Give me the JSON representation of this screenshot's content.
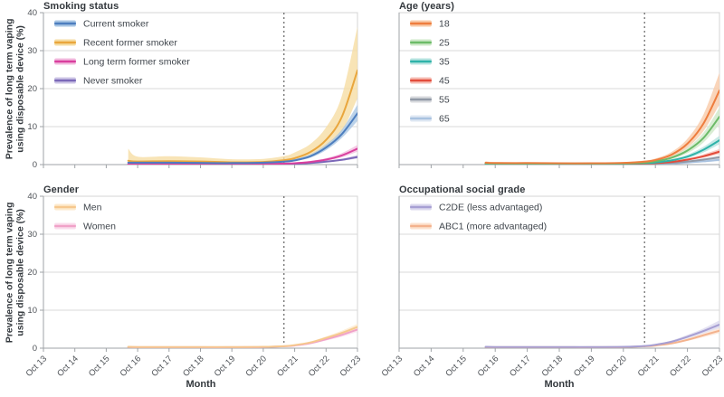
{
  "figure": {
    "ylabel": "Prevalence of long term vaping\nusing disposable device (%)",
    "xlabel": "Month",
    "x_ticks": [
      "Oct 13",
      "Oct 14",
      "Oct 15",
      "Oct 16",
      "Oct 17",
      "Oct 18",
      "Oct 19",
      "Oct 20",
      "Oct 21",
      "Oct 22",
      "Oct 23"
    ],
    "y_ticks": [
      0,
      10,
      20,
      30,
      40
    ],
    "x_range_years": [
      0,
      10
    ],
    "y_range_percent": [
      0,
      40
    ],
    "reference_line_x_years": 7.66,
    "colors": {
      "axis": "#9fa3a7",
      "grid": "#d9d9d9",
      "border": "#d4d4d4",
      "tick_text": "#4d5156",
      "title_text": "#33383d",
      "reference_line": "#444444"
    }
  },
  "chart_data": [
    {
      "type": "line",
      "title": "Smoking status",
      "x_years_since_oct_2013": [
        2.7,
        3,
        4,
        5,
        6,
        7,
        7.7,
        8,
        8.5,
        9,
        9.5,
        10
      ],
      "series": [
        {
          "name": "Current smoker",
          "color": "#4d7ebf",
          "band_color": "#aac7e4",
          "y": [
            0.5,
            0.5,
            0.5,
            0.45,
            0.4,
            0.5,
            0.8,
            1.1,
            2.2,
            4.5,
            8.0,
            13.5
          ],
          "ci_lower": [
            0.3,
            0.3,
            0.35,
            0.3,
            0.28,
            0.35,
            0.6,
            0.9,
            1.8,
            3.8,
            7.0,
            11.5
          ],
          "ci_upper": [
            0.8,
            0.75,
            0.7,
            0.62,
            0.55,
            0.7,
            1.1,
            1.5,
            2.7,
            5.3,
            9.2,
            15.8
          ]
        },
        {
          "name": "Recent former smoker",
          "color": "#e9a63d",
          "band_color": "#f6dda4",
          "y": [
            1.0,
            0.8,
            0.9,
            0.8,
            0.6,
            0.7,
            1.2,
            1.7,
            3.3,
            6.5,
            12.5,
            24.8
          ],
          "ci_lower": [
            0.25,
            0.3,
            0.35,
            0.3,
            0.25,
            0.3,
            0.6,
            0.9,
            2.0,
            4.4,
            8.6,
            17.5
          ],
          "ci_upper": [
            4.2,
            2.1,
            2.2,
            1.9,
            1.4,
            1.5,
            2.3,
            3.2,
            5.4,
            9.8,
            18.0,
            36.3
          ]
        },
        {
          "name": "Long term former smoker",
          "color": "#d93f9e",
          "band_color": "#f2bcdf",
          "y": [
            0.1,
            0.1,
            0.1,
            0.1,
            0.12,
            0.15,
            0.25,
            0.35,
            0.7,
            1.3,
            2.4,
            4.2
          ],
          "ci_lower": [
            0.04,
            0.04,
            0.05,
            0.05,
            0.06,
            0.1,
            0.17,
            0.25,
            0.5,
            1.0,
            1.9,
            3.4
          ],
          "ci_upper": [
            0.25,
            0.2,
            0.2,
            0.2,
            0.22,
            0.28,
            0.4,
            0.55,
            0.95,
            1.7,
            3.0,
            5.2
          ]
        },
        {
          "name": "Never smoker",
          "color": "#7b68b8",
          "band_color": "#cdc6e6",
          "y": [
            0.05,
            0.05,
            0.05,
            0.05,
            0.06,
            0.1,
            0.15,
            0.2,
            0.4,
            0.75,
            1.25,
            2.0
          ],
          "ci_lower": [
            0.02,
            0.02,
            0.02,
            0.02,
            0.03,
            0.06,
            0.1,
            0.14,
            0.3,
            0.6,
            1.0,
            1.6
          ],
          "ci_upper": [
            0.12,
            0.12,
            0.12,
            0.12,
            0.14,
            0.18,
            0.25,
            0.33,
            0.55,
            0.95,
            1.55,
            2.5
          ]
        }
      ]
    },
    {
      "type": "line",
      "title": "Age (years)",
      "x_years_since_oct_2013": [
        2.7,
        3,
        4,
        5,
        6,
        7,
        7.7,
        8,
        8.5,
        9,
        9.5,
        10
      ],
      "series": [
        {
          "name": "18",
          "color": "#ee7d3e",
          "band_color": "#f9cba9",
          "y": [
            0.5,
            0.4,
            0.4,
            0.35,
            0.35,
            0.45,
            0.8,
            1.2,
            2.6,
            5.5,
            10.8,
            19.5
          ],
          "ci_lower": [
            0.3,
            0.25,
            0.27,
            0.24,
            0.24,
            0.32,
            0.6,
            0.95,
            2.1,
            4.5,
            8.8,
            15.8
          ],
          "ci_upper": [
            0.85,
            0.65,
            0.6,
            0.52,
            0.52,
            0.65,
            1.1,
            1.6,
            3.3,
            6.8,
            13.2,
            24.2
          ]
        },
        {
          "name": "25",
          "color": "#6cbb68",
          "band_color": "#cfe9c9",
          "y": [
            0.35,
            0.3,
            0.3,
            0.3,
            0.3,
            0.35,
            0.55,
            0.85,
            1.8,
            3.7,
            7.0,
            12.6
          ],
          "ci_lower": [
            0.25,
            0.22,
            0.22,
            0.22,
            0.22,
            0.26,
            0.42,
            0.66,
            1.45,
            3.0,
            5.8,
            10.6
          ],
          "ci_upper": [
            0.5,
            0.42,
            0.42,
            0.42,
            0.42,
            0.5,
            0.75,
            1.1,
            2.25,
            4.5,
            8.4,
            15.0
          ]
        },
        {
          "name": "35",
          "color": "#2fb3a9",
          "band_color": "#b8e4e0",
          "y": [
            0.25,
            0.22,
            0.22,
            0.2,
            0.2,
            0.25,
            0.4,
            0.55,
            1.1,
            2.1,
            3.9,
            6.4
          ],
          "ci_lower": [
            0.18,
            0.16,
            0.16,
            0.15,
            0.15,
            0.18,
            0.3,
            0.43,
            0.88,
            1.7,
            3.2,
            5.4
          ],
          "ci_upper": [
            0.36,
            0.3,
            0.3,
            0.28,
            0.28,
            0.34,
            0.52,
            0.72,
            1.4,
            2.6,
            4.7,
            7.6
          ]
        },
        {
          "name": "45",
          "color": "#e34c3b",
          "band_color": "#f6beb5",
          "y": [
            0.2,
            0.17,
            0.16,
            0.15,
            0.15,
            0.18,
            0.28,
            0.38,
            0.7,
            1.3,
            2.2,
            3.4
          ],
          "ci_lower": [
            0.14,
            0.12,
            0.11,
            0.11,
            0.11,
            0.13,
            0.21,
            0.29,
            0.55,
            1.05,
            1.8,
            2.8
          ],
          "ci_upper": [
            0.3,
            0.25,
            0.23,
            0.22,
            0.22,
            0.26,
            0.38,
            0.5,
            0.9,
            1.6,
            2.7,
            4.1
          ]
        },
        {
          "name": "55",
          "color": "#9199a6",
          "band_color": "#d8dade",
          "y": [
            0.12,
            0.1,
            0.1,
            0.1,
            0.1,
            0.12,
            0.18,
            0.25,
            0.45,
            0.8,
            1.3,
            1.9
          ],
          "ci_lower": [
            0.08,
            0.07,
            0.07,
            0.07,
            0.07,
            0.08,
            0.13,
            0.18,
            0.34,
            0.62,
            1.03,
            1.5
          ],
          "ci_upper": [
            0.18,
            0.15,
            0.15,
            0.15,
            0.15,
            0.18,
            0.26,
            0.35,
            0.6,
            1.0,
            1.65,
            2.4
          ]
        },
        {
          "name": "65",
          "color": "#a9c2e0",
          "band_color": "#dfe8f3",
          "y": [
            0.06,
            0.05,
            0.05,
            0.05,
            0.05,
            0.07,
            0.11,
            0.16,
            0.3,
            0.55,
            0.85,
            1.25
          ],
          "ci_lower": [
            0.03,
            0.03,
            0.03,
            0.03,
            0.03,
            0.04,
            0.07,
            0.11,
            0.21,
            0.4,
            0.63,
            0.9
          ],
          "ci_upper": [
            0.12,
            0.1,
            0.1,
            0.1,
            0.1,
            0.13,
            0.18,
            0.24,
            0.43,
            0.75,
            1.15,
            1.7
          ]
        }
      ]
    },
    {
      "type": "line",
      "title": "Gender",
      "x_years_since_oct_2013": [
        2.7,
        3,
        4,
        5,
        6,
        7,
        7.7,
        8,
        8.5,
        9,
        9.5,
        10
      ],
      "series": [
        {
          "name": "Men",
          "color": "#f6c88e",
          "band_color": "#fdeacd",
          "y": [
            0.35,
            0.3,
            0.3,
            0.3,
            0.3,
            0.35,
            0.55,
            0.8,
            1.5,
            2.7,
            4.0,
            5.6
          ],
          "ci_lower": [
            0.27,
            0.23,
            0.23,
            0.23,
            0.23,
            0.28,
            0.45,
            0.66,
            1.27,
            2.3,
            3.5,
            4.9
          ],
          "ci_upper": [
            0.48,
            0.4,
            0.4,
            0.4,
            0.4,
            0.46,
            0.68,
            0.97,
            1.77,
            3.1,
            4.6,
            6.4
          ]
        },
        {
          "name": "Women",
          "color": "#f0a2c8",
          "band_color": "#fadcec",
          "y": [
            0.3,
            0.25,
            0.25,
            0.25,
            0.25,
            0.3,
            0.5,
            0.7,
            1.3,
            2.35,
            3.5,
            4.9
          ],
          "ci_lower": [
            0.23,
            0.19,
            0.19,
            0.19,
            0.19,
            0.24,
            0.4,
            0.57,
            1.1,
            2.0,
            3.0,
            4.3
          ],
          "ci_upper": [
            0.4,
            0.34,
            0.34,
            0.34,
            0.34,
            0.4,
            0.62,
            0.86,
            1.55,
            2.75,
            4.0,
            5.6
          ]
        }
      ]
    },
    {
      "type": "line",
      "title": "Occupational social grade",
      "x_years_since_oct_2013": [
        2.7,
        3,
        4,
        5,
        6,
        7,
        7.7,
        8,
        8.5,
        9,
        9.5,
        10
      ],
      "series": [
        {
          "name": "C2DE (less advantaged)",
          "color": "#a79fd3",
          "band_color": "#dcd9ee",
          "y": [
            0.35,
            0.3,
            0.3,
            0.3,
            0.3,
            0.35,
            0.6,
            0.9,
            1.7,
            3.0,
            4.5,
            6.2
          ],
          "ci_lower": [
            0.27,
            0.23,
            0.23,
            0.23,
            0.23,
            0.28,
            0.48,
            0.74,
            1.45,
            2.6,
            3.9,
            5.3
          ],
          "ci_upper": [
            0.46,
            0.39,
            0.39,
            0.39,
            0.39,
            0.45,
            0.74,
            1.1,
            2.0,
            3.5,
            5.2,
            7.3
          ]
        },
        {
          "name": "ABC1 (more advantaged)",
          "color": "#f3b28d",
          "band_color": "#fce2cf",
          "y": [
            0.3,
            0.25,
            0.25,
            0.25,
            0.25,
            0.3,
            0.5,
            0.7,
            1.25,
            2.2,
            3.4,
            4.6
          ],
          "ci_lower": [
            0.23,
            0.19,
            0.19,
            0.19,
            0.19,
            0.24,
            0.4,
            0.57,
            1.05,
            1.9,
            2.9,
            4.0
          ],
          "ci_upper": [
            0.4,
            0.33,
            0.33,
            0.33,
            0.33,
            0.39,
            0.62,
            0.86,
            1.5,
            2.55,
            3.9,
            5.3
          ]
        }
      ]
    }
  ]
}
